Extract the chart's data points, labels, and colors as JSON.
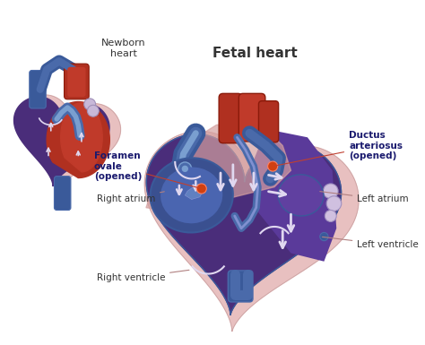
{
  "title": "Fetal heart",
  "small_title": "Newborn\nheart",
  "bg_color": "#ffffff",
  "labels": {
    "right_atrium": "Right atrium",
    "left_atrium": "Left atrium",
    "right_ventricle": "Right ventricle",
    "left_ventricle": "Left ventricle",
    "foramen_ovale": "Foramen\novale\n(opened)",
    "ductus_arteriosus": "Ductus\narteriosus\n(opened)"
  },
  "colors": {
    "purple_dark": "#4a2d7a",
    "purple_mid": "#5b3a9c",
    "purple_bright": "#6a4ab0",
    "blue_vessel": "#5a7fc0",
    "blue_dark": "#3a5a9a",
    "blue_medium": "#4a6aaa",
    "blue_light": "#7a9fd0",
    "blue_ra": "#3a5090",
    "red_vessel": "#b03020",
    "red_bright": "#c03a2a",
    "red_dark": "#8a1a0a",
    "pink_outer": "#e8c0c0",
    "pink_light": "#f0d0d0",
    "pink_muscle": "#d4a0a0",
    "arrow_color": "#c0b0e0",
    "arrow_white": "#e0d8f0",
    "dot_orange": "#d04010",
    "line_red": "#c04030",
    "white": "#ffffff",
    "dark_text": "#333333",
    "bold_label": "#1a1a6e"
  }
}
